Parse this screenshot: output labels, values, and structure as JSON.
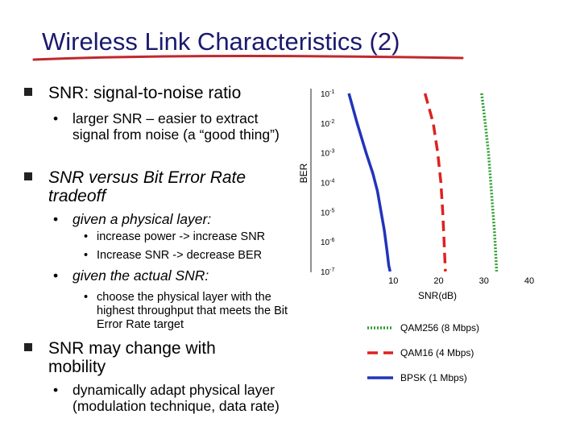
{
  "title": "Wireless Link Characteristics (2)",
  "bullets": {
    "snr_def": "SNR: signal-to-noise ratio",
    "snr_larger": "larger SNR – easier to extract signal from noise (a “good thing”)",
    "snr_vs_ber": "SNR versus Bit Error Rate tradeoff",
    "given_layer": "given a physical layer:",
    "inc_power": "increase power -> increase SNR",
    "inc_snr": "Increase SNR -> decrease BER",
    "given_snr": "given the actual SNR:",
    "choose_layer": "choose the physical layer with the highest throughput that meets the Bit Error Rate target",
    "snr_mobility": "SNR may change with mobility",
    "adapt": "dynamically adapt physical layer (modulation technique, data rate)"
  },
  "chart_data": {
    "type": "line",
    "xlabel": "SNR(dB)",
    "ylabel": "BER",
    "xticks": [
      "10",
      "20",
      "30",
      "40"
    ],
    "yticks": [
      {
        "base": "10",
        "exp": "-1"
      },
      {
        "base": "10",
        "exp": "-2"
      },
      {
        "base": "10",
        "exp": "-3"
      },
      {
        "base": "10",
        "exp": "-4"
      },
      {
        "base": "10",
        "exp": "-5"
      },
      {
        "base": "10",
        "exp": "-6"
      },
      {
        "base": "10",
        "exp": "-7"
      }
    ],
    "xlim": [
      0,
      40
    ],
    "ylim_exponent": [
      -7,
      -1
    ],
    "y_scale": "log",
    "series": [
      {
        "name": "QAM256 (8 Mbps)",
        "color": "#2e9e2e",
        "style": "dotted",
        "x": [
          29.5,
          30.3,
          31.0,
          31.5,
          31.9,
          32.3,
          32.6,
          32.8
        ],
        "y_exp": [
          -1.0,
          -2.0,
          -3.0,
          -4.0,
          -4.8,
          -5.6,
          -6.4,
          -7.0
        ]
      },
      {
        "name": "QAM16 (4 Mbps)",
        "color": "#dd2222",
        "style": "dashed",
        "x": [
          17.0,
          18.8,
          19.8,
          20.5,
          20.9,
          21.2,
          21.5
        ],
        "y_exp": [
          -1.0,
          -2.0,
          -3.0,
          -4.0,
          -5.0,
          -6.0,
          -7.0
        ]
      },
      {
        "name": "BPSK (1 Mbps)",
        "color": "#2233bb",
        "style": "solid",
        "x": [
          0.2,
          2.0,
          4.0,
          5.5,
          6.5,
          7.3,
          8.0,
          8.6,
          9.0,
          9.3
        ],
        "y_exp": [
          -1.0,
          -2.0,
          -3.0,
          -3.7,
          -4.3,
          -5.0,
          -5.6,
          -6.3,
          -6.8,
          -7.0
        ]
      }
    ],
    "legend_position": "bottom-right"
  }
}
